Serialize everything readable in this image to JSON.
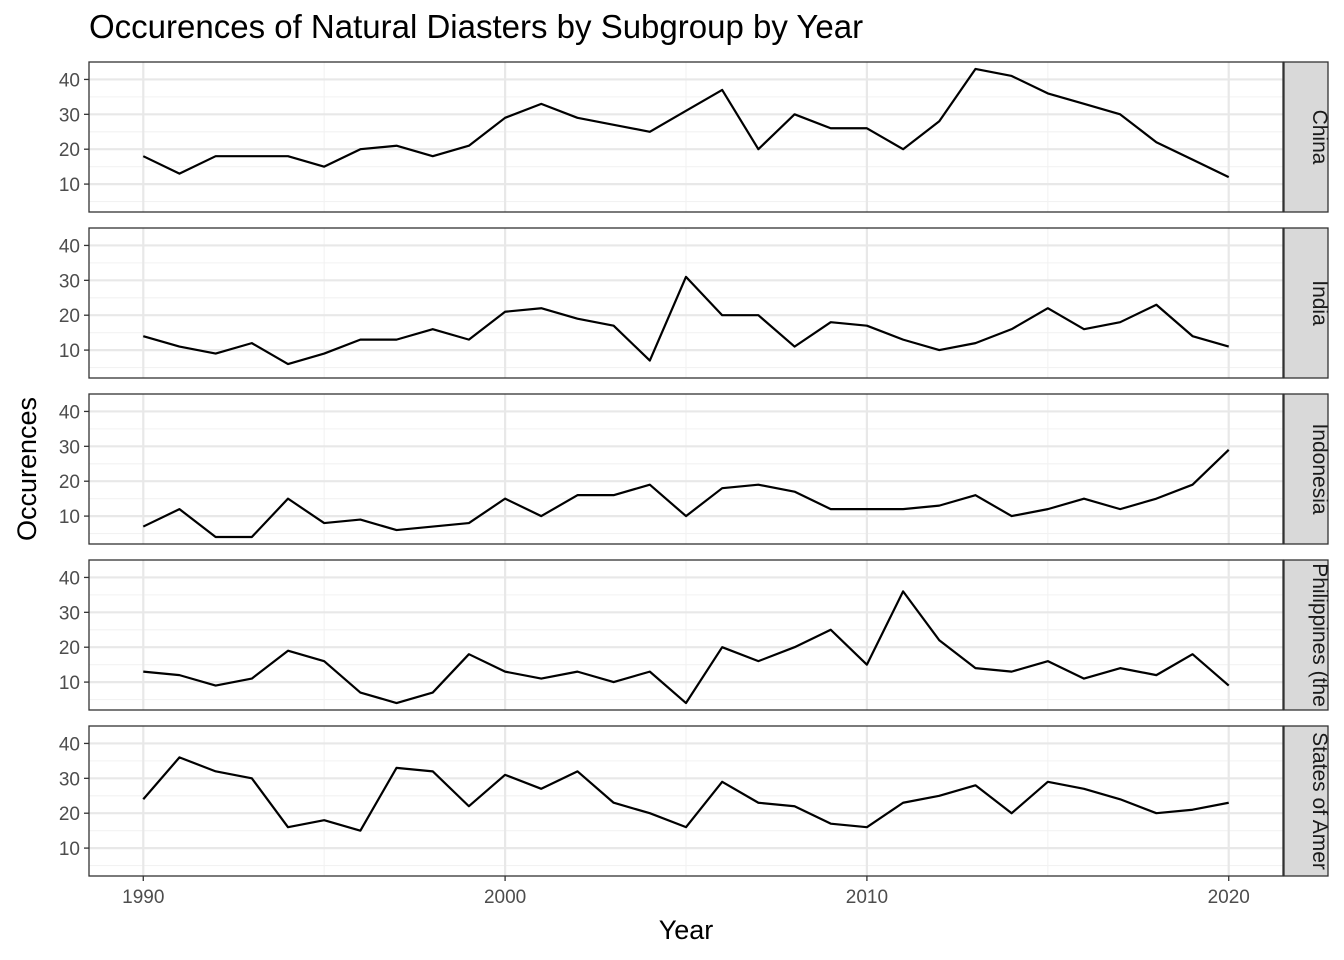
{
  "chart_data": {
    "type": "line",
    "title": "Occurences of Natural Diasters by Subgroup by Year",
    "xlabel": "Year",
    "ylabel": "Occurences",
    "x": [
      1990,
      1991,
      1992,
      1993,
      1994,
      1995,
      1996,
      1997,
      1998,
      1999,
      2000,
      2001,
      2002,
      2003,
      2004,
      2005,
      2006,
      2007,
      2008,
      2009,
      2010,
      2011,
      2012,
      2013,
      2014,
      2015,
      2016,
      2017,
      2018,
      2019,
      2020
    ],
    "xlim": [
      1988.5,
      2021.5
    ],
    "ylim": [
      2,
      45
    ],
    "xticks": [
      1990,
      2000,
      2010,
      2020
    ],
    "yticks": [
      10,
      20,
      30,
      40
    ],
    "grid": true,
    "facet": "rows",
    "strip_position": "right",
    "series": [
      {
        "name": "China",
        "strip_label": "China",
        "color": "#000000",
        "values": [
          18,
          13,
          18,
          18,
          18,
          15,
          20,
          21,
          18,
          21,
          29,
          33,
          29,
          27,
          25,
          31,
          37,
          20,
          30,
          26,
          26,
          20,
          28,
          43,
          41,
          36,
          33,
          30,
          22,
          17,
          12
        ]
      },
      {
        "name": "India",
        "strip_label": "India",
        "color": "#000000",
        "values": [
          14,
          11,
          9,
          12,
          6,
          9,
          13,
          13,
          16,
          13,
          21,
          22,
          19,
          17,
          7,
          31,
          20,
          20,
          11,
          18,
          17,
          13,
          10,
          12,
          16,
          22,
          16,
          18,
          23,
          14,
          11
        ]
      },
      {
        "name": "Indonesia",
        "strip_label": "Indonesia",
        "color": "#000000",
        "values": [
          7,
          12,
          4,
          4,
          15,
          8,
          9,
          6,
          7,
          8,
          15,
          10,
          16,
          16,
          19,
          10,
          18,
          19,
          17,
          12,
          12,
          12,
          13,
          16,
          10,
          12,
          15,
          12,
          15,
          19,
          29
        ]
      },
      {
        "name": "Philippines (the)",
        "strip_label": "Philippines (the",
        "color": "#000000",
        "values": [
          13,
          12,
          9,
          11,
          19,
          16,
          7,
          4,
          7,
          18,
          13,
          11,
          13,
          10,
          13,
          4,
          20,
          16,
          20,
          25,
          15,
          36,
          22,
          14,
          13,
          16,
          11,
          14,
          12,
          18,
          9
        ]
      },
      {
        "name": "United States of America",
        "strip_label": "States of Amer",
        "color": "#000000",
        "values": [
          24,
          36,
          32,
          30,
          16,
          18,
          15,
          33,
          32,
          22,
          31,
          27,
          32,
          23,
          20,
          16,
          29,
          23,
          22,
          17,
          16,
          23,
          25,
          28,
          20,
          29,
          27,
          24,
          20,
          21,
          23
        ]
      }
    ]
  }
}
